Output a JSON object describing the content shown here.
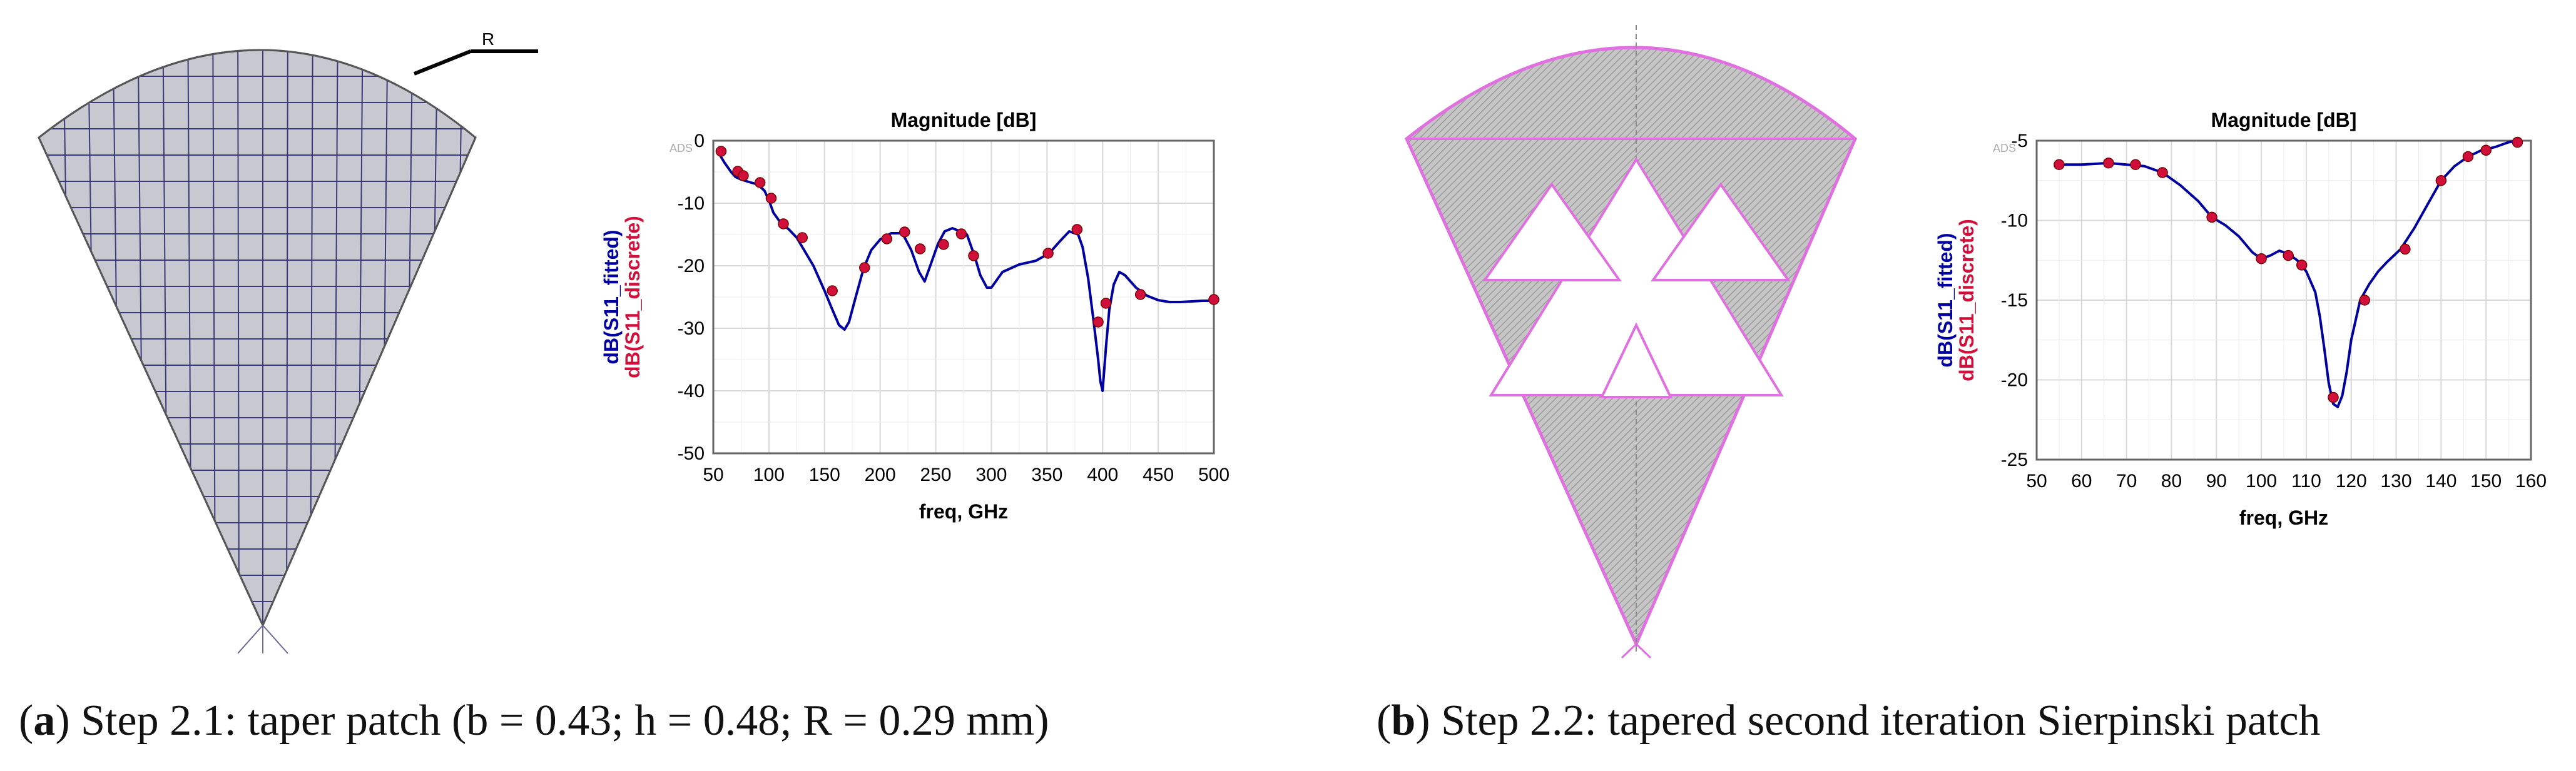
{
  "panel_a": {
    "caption_letter": "a",
    "caption_text": "Step 2.1: taper patch (b = 0.43; h = 0.48; R = 0.29 mm)",
    "radius_label": "R"
  },
  "panel_b": {
    "caption_letter": "b",
    "caption_text": "Step 2.2: tapered second iteration Sierpinski patch"
  },
  "colors": {
    "fitted": "#0000a0",
    "discrete": "#d0103a",
    "patch_fill": "#c8c8d0",
    "sierpinski_outline": "#e070e0"
  },
  "chart_data": [
    {
      "type": "line",
      "title": "Magnitude [dB]",
      "watermark": "ADS",
      "xlabel": "freq, GHz",
      "ylabel_series": [
        "dB(S11_fitted)",
        "dB(S11_discrete)"
      ],
      "xlim": [
        50,
        500
      ],
      "ylim": [
        -50,
        0
      ],
      "xticks": [
        "50",
        "100",
        "150",
        "200",
        "250",
        "300",
        "350",
        "400",
        "450",
        "500"
      ],
      "yticks": [
        "0",
        "-10",
        "-20",
        "-30",
        "-40",
        "-50"
      ],
      "grid": true,
      "series": [
        {
          "name": "dB(S11_fitted)",
          "x": [
            55,
            60,
            66,
            70,
            75,
            82,
            90,
            96,
            100,
            104,
            110,
            118,
            125,
            130,
            140,
            150,
            157,
            163,
            168,
            172,
            178,
            185,
            192,
            200,
            210,
            220,
            228,
            235,
            240,
            245,
            252,
            258,
            265,
            272,
            278,
            285,
            290,
            296,
            300,
            310,
            325,
            340,
            352,
            362,
            370,
            378,
            382,
            387,
            392,
            396,
            398,
            400,
            403,
            406,
            410,
            415,
            420,
            430,
            440,
            450,
            460,
            470,
            480,
            490,
            500
          ],
          "y": [
            -2,
            -3.5,
            -5,
            -5.8,
            -6.2,
            -6.6,
            -7,
            -8,
            -9.5,
            -11.5,
            -13,
            -14.2,
            -15.5,
            -17,
            -20,
            -24,
            -27,
            -29.5,
            -30.2,
            -29,
            -25,
            -20.5,
            -17.5,
            -15.8,
            -14.8,
            -14.8,
            -17.5,
            -21,
            -22.5,
            -20,
            -16.5,
            -14.5,
            -14,
            -14.5,
            -15,
            -18.5,
            -21.5,
            -23.5,
            -23.5,
            -21,
            -19.8,
            -19.2,
            -18,
            -16,
            -14.5,
            -15,
            -17,
            -22,
            -29,
            -35,
            -38.5,
            -40,
            -33,
            -27,
            -23,
            -21,
            -21.5,
            -23.5,
            -24.8,
            -25.5,
            -25.8,
            -25.8,
            -25.7,
            -25.6,
            -25.6
          ]
        },
        {
          "name": "dB(S11_discrete)",
          "x": [
            57,
            72,
            77,
            92,
            102,
            113,
            130,
            157,
            186,
            206,
            222,
            236,
            257,
            273,
            284,
            351,
            377,
            396,
            403,
            434,
            500
          ],
          "y": [
            -1.7,
            -4.9,
            -5.6,
            -6.7,
            -9.2,
            -13.3,
            -15.5,
            -24,
            -20.3,
            -15.7,
            -14.6,
            -17.3,
            -16.6,
            -14.9,
            -18.4,
            -18,
            -14.2,
            -29,
            -26,
            -24.6,
            -25.4
          ]
        }
      ]
    },
    {
      "type": "line",
      "title": "Magnitude [dB]",
      "watermark": "ADS",
      "xlabel": "freq, GHz",
      "ylabel_series": [
        "dB(S11_fitted)",
        "dB(S11_discrete)"
      ],
      "xlim": [
        50,
        160
      ],
      "ylim": [
        -25,
        -5
      ],
      "xticks": [
        "50",
        "60",
        "70",
        "80",
        "90",
        "100",
        "110",
        "120",
        "130",
        "140",
        "150",
        "160"
      ],
      "yticks": [
        "-5",
        "-10",
        "-15",
        "-20",
        "-25"
      ],
      "grid": true,
      "series": [
        {
          "name": "dB(S11_fitted)",
          "x": [
            55,
            60,
            66,
            70,
            74,
            78,
            82,
            86,
            89,
            92,
            95,
            98,
            100,
            102,
            104,
            106,
            108,
            110,
            112,
            113,
            114,
            115,
            116,
            117,
            118,
            119,
            120,
            122,
            124,
            126,
            128,
            131,
            134,
            137,
            140,
            143,
            146,
            149,
            152,
            155,
            157
          ],
          "y": [
            -6.5,
            -6.5,
            -6.4,
            -6.5,
            -6.6,
            -7,
            -7.8,
            -8.8,
            -9.8,
            -10.3,
            -11,
            -12,
            -12.4,
            -12.2,
            -11.9,
            -12.1,
            -12.5,
            -13.2,
            -14.5,
            -16,
            -18,
            -20.2,
            -21.5,
            -21.7,
            -21,
            -19.5,
            -17.5,
            -15,
            -14,
            -13.2,
            -12.6,
            -11.8,
            -10.5,
            -9,
            -7.5,
            -6.6,
            -6,
            -5.6,
            -5.4,
            -5.1,
            -5
          ]
        },
        {
          "name": "dB(S11_discrete)",
          "x": [
            55,
            66,
            72,
            78,
            89,
            100,
            106,
            109,
            116,
            123,
            132,
            140,
            146,
            150,
            157
          ],
          "y": [
            -6.5,
            -6.4,
            -6.5,
            -7,
            -9.8,
            -12.4,
            -12.2,
            -12.8,
            -21.1,
            -15,
            -11.8,
            -7.5,
            -6,
            -5.6,
            -5.1
          ]
        }
      ]
    }
  ]
}
